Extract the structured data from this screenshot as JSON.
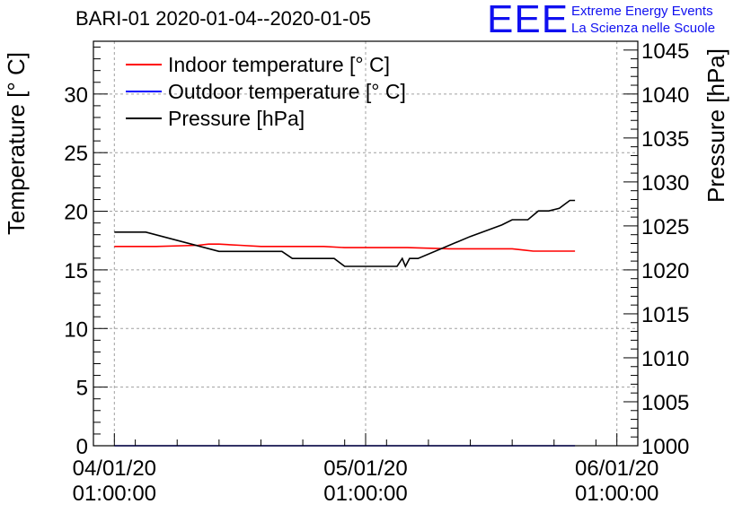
{
  "header": {
    "title": "BARI-01 2020-01-04--2020-01-05",
    "logo_text": "EEE",
    "org_line1": "Extreme Energy Events",
    "org_line2": "La Scienza nelle Scuole"
  },
  "chart_data": {
    "type": "line",
    "ylabel_left": "Temperature [° C]",
    "ylabel_right": "Pressure [hPa]",
    "xlim": [
      "04/01/20 01:00:00",
      "06/01/20 01:00:00"
    ],
    "ylim_left": [
      0,
      34.5
    ],
    "ylim_right": [
      1000,
      1046
    ],
    "yticks_left": [
      0,
      5,
      10,
      15,
      20,
      25,
      30
    ],
    "yticks_right": [
      1000,
      1005,
      1010,
      1015,
      1020,
      1025,
      1030,
      1035,
      1040,
      1045
    ],
    "xticks": [
      {
        "h": 0,
        "line1": "04/01/20",
        "line2": "01:00:00"
      },
      {
        "h": 24,
        "line1": "05/01/20",
        "line2": "01:00:00"
      },
      {
        "h": 48,
        "line1": "06/01/20",
        "line2": "01:00:00"
      }
    ],
    "grid": true,
    "legend_position": "top-left",
    "colors": {
      "indoor": "#ff0000",
      "outdoor": "#0000ff",
      "pressure": "#000000"
    },
    "series": [
      {
        "name": "Indoor temperature [° C]",
        "axis": "left",
        "color": "#ff0000",
        "x_hours": [
          0,
          4,
          8,
          9,
          10,
          12,
          14,
          18,
          20,
          22,
          24,
          26,
          28,
          32,
          34,
          36,
          38,
          39,
          40,
          44
        ],
        "values": [
          17.0,
          17.0,
          17.1,
          17.2,
          17.2,
          17.1,
          17.0,
          17.0,
          17.0,
          16.9,
          16.9,
          16.9,
          16.9,
          16.8,
          16.8,
          16.8,
          16.8,
          16.7,
          16.6,
          16.6
        ]
      },
      {
        "name": "Outdoor temperature [° C]",
        "axis": "left",
        "color": "#0000ff",
        "x_hours": [
          0,
          44
        ],
        "values": [
          0,
          0
        ]
      },
      {
        "name": "Pressure [hPa]",
        "axis": "right",
        "color": "#000000",
        "x_hours": [
          0,
          3,
          10,
          16,
          17,
          21,
          22,
          27,
          27.5,
          27.8,
          28.2,
          29,
          34,
          37,
          38,
          39.5,
          40.5,
          41.5,
          42.5,
          43.5,
          44
        ],
        "values": [
          1024.3,
          1024.3,
          1022.1,
          1022.1,
          1021.3,
          1021.3,
          1020.4,
          1020.4,
          1021.3,
          1020.4,
          1021.3,
          1021.3,
          1023.8,
          1025.1,
          1025.7,
          1025.7,
          1026.7,
          1026.7,
          1027.0,
          1027.9,
          1027.9
        ]
      }
    ]
  }
}
